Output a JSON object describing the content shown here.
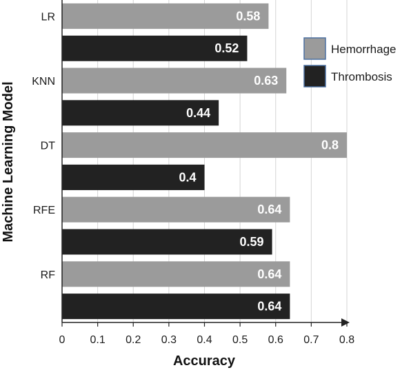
{
  "chart_data": {
    "type": "bar",
    "orientation": "horizontal",
    "categories": [
      "LR",
      "KNN",
      "DT",
      "RFE",
      "RF"
    ],
    "series": [
      {
        "name": "Hemorrhage",
        "color": "#9b9b9b",
        "values": [
          0.58,
          0.63,
          0.8,
          0.64,
          0.64
        ],
        "labels": [
          "0.58",
          "0.63",
          "0.8",
          "0.64",
          "0.64"
        ]
      },
      {
        "name": "Thrombosis",
        "color": "#222222",
        "values": [
          0.52,
          0.44,
          0.4,
          0.59,
          0.64
        ],
        "labels": [
          "0.52",
          "0.44",
          "0.4",
          "0.59",
          "0.64"
        ]
      }
    ],
    "xlabel": "Accuracy",
    "ylabel": "Machine Learning Model",
    "xlim": [
      0,
      0.8
    ],
    "xticks": [
      "0",
      "0.1",
      "0.2",
      "0.3",
      "0.4",
      "0.5",
      "0.6",
      "0.7",
      "0.8"
    ],
    "grid": "vertical",
    "legend_position": "top-right"
  }
}
